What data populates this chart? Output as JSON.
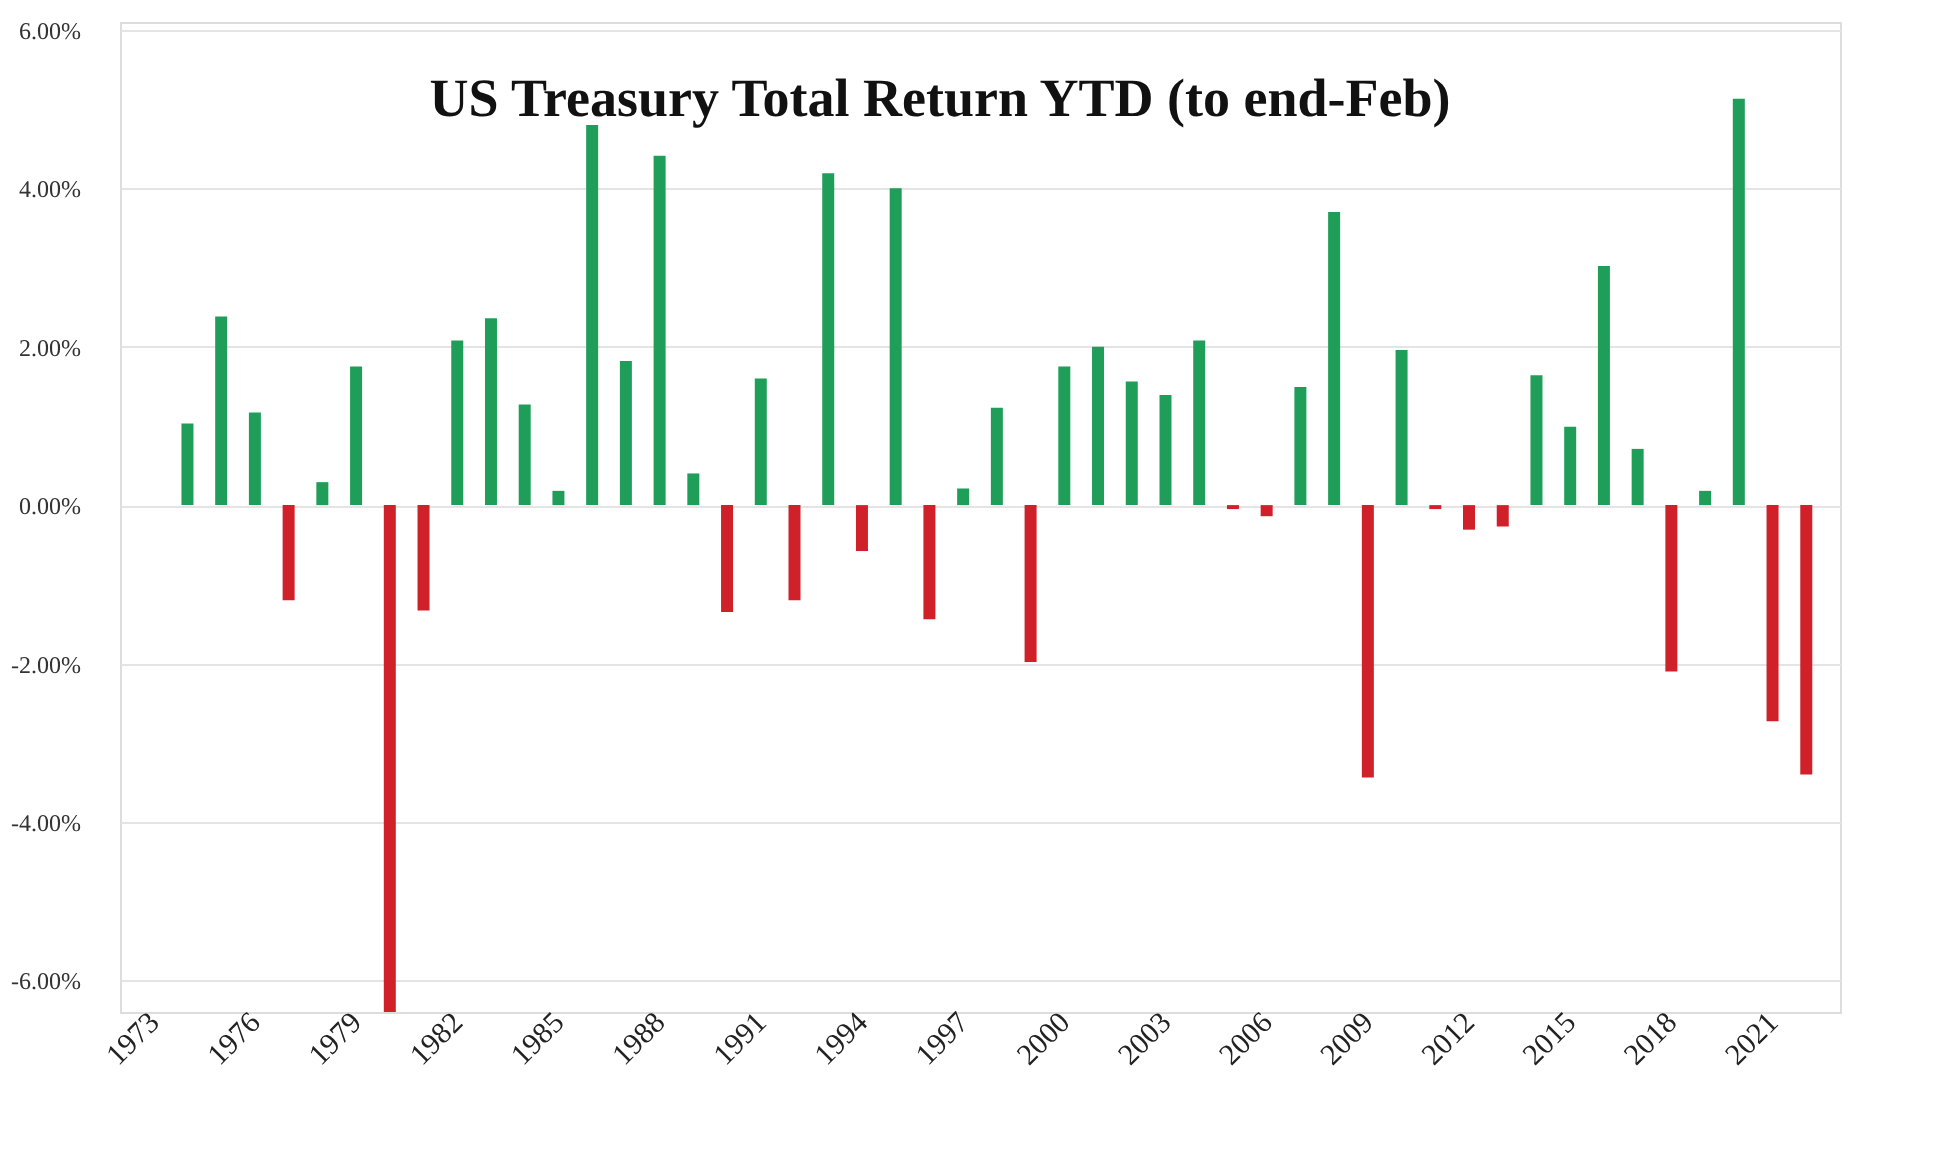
{
  "chart_data": {
    "type": "bar",
    "title": "US Treasury Total Return YTD (to end-Feb)",
    "categories": [
      "1973",
      null,
      null,
      "1976",
      null,
      null,
      "1979",
      null,
      null,
      "1982",
      null,
      null,
      "1985",
      null,
      null,
      "1988",
      null,
      null,
      "1991",
      null,
      null,
      "1994",
      null,
      null,
      "1997",
      null,
      null,
      "2000",
      null,
      null,
      "2003",
      null,
      null,
      "2006",
      null,
      null,
      "2009",
      null,
      null,
      "2012",
      null,
      null,
      "2015",
      null,
      null,
      "2018",
      null,
      null,
      "2021",
      null
    ],
    "values": [
      null,
      1.03,
      2.38,
      1.17,
      -1.2,
      0.29,
      1.75,
      -6.4,
      -1.33,
      2.08,
      2.36,
      1.27,
      0.18,
      4.8,
      1.82,
      4.41,
      0.4,
      -1.35,
      1.6,
      -1.2,
      4.19,
      -0.58,
      4.0,
      -1.44,
      0.21,
      1.23,
      -1.98,
      1.75,
      2.0,
      1.56,
      1.39,
      2.08,
      -0.05,
      -0.14,
      1.49,
      3.7,
      -3.44,
      1.96,
      -0.05,
      -0.31,
      -0.27,
      1.64,
      0.99,
      3.02,
      0.71,
      -2.1,
      0.18,
      5.13,
      -2.73,
      -3.4
    ],
    "colors": [
      "#1f9e5a",
      "#1f9e5a",
      "#1f9e5a",
      "#1f9e5a",
      "#d0202a",
      "#1f9e5a",
      "#1f9e5a",
      "#d0202a",
      "#d0202a",
      "#1f9e5a",
      "#1f9e5a",
      "#1f9e5a",
      "#1f9e5a",
      "#1f9e5a",
      "#1f9e5a",
      "#1f9e5a",
      "#1f9e5a",
      "#d0202a",
      "#1f9e5a",
      "#d0202a",
      "#1f9e5a",
      "#d0202a",
      "#1f9e5a",
      "#d0202a",
      "#1f9e5a",
      "#1f9e5a",
      "#d0202a",
      "#1f9e5a",
      "#1f9e5a",
      "#1f9e5a",
      "#1f9e5a",
      "#1f9e5a",
      "#d0202a",
      "#d0202a",
      "#1f9e5a",
      "#1f9e5a",
      "#d0202a",
      "#1f9e5a",
      "#d0202a",
      "#d0202a",
      "#d0202a",
      "#1f9e5a",
      "#1f9e5a",
      "#1f9e5a",
      "#1f9e5a",
      "#d0202a",
      "#1f9e5a",
      "#1f9e5a",
      "#d0202a",
      "#d0202a"
    ],
    "ylim": [
      -6.4,
      6.1
    ],
    "yticks": [
      {
        "value": -6,
        "label": "-6.00%"
      },
      {
        "value": -4,
        "label": "-4.00%"
      },
      {
        "value": -2,
        "label": "-2.00%"
      },
      {
        "value": 0,
        "label": "0.00%"
      },
      {
        "value": 2,
        "label": "2.00%"
      },
      {
        "value": 4,
        "label": "4.00%"
      },
      {
        "value": 6,
        "label": "6.00%"
      }
    ],
    "grid": "y"
  }
}
